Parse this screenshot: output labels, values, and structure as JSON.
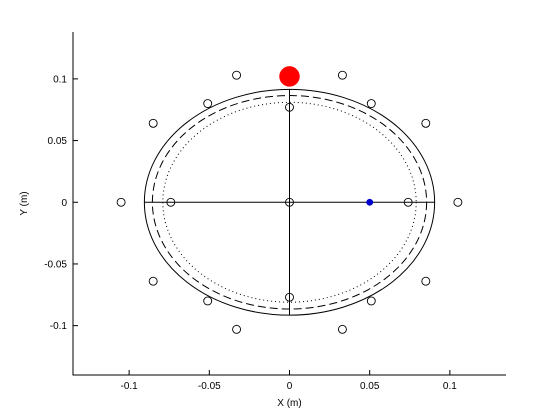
{
  "chart_data": {
    "type": "scatter",
    "title": "",
    "xlabel": "X (m)",
    "ylabel": "Y (m)",
    "xlim": [
      -0.135,
      0.135
    ],
    "ylim": [
      -0.14,
      0.138
    ],
    "grid": false,
    "legend": "none",
    "xticks": [
      {
        "value": -0.1,
        "label": "-0.1"
      },
      {
        "value": -0.05,
        "label": "-0.05"
      },
      {
        "value": 0,
        "label": "0"
      },
      {
        "value": 0.05,
        "label": "0.05"
      },
      {
        "value": 0.1,
        "label": "0.1"
      }
    ],
    "yticks": [
      {
        "value": 0.1,
        "label": "0.1"
      },
      {
        "value": 0.05,
        "label": "0.05"
      },
      {
        "value": 0,
        "label": "0"
      },
      {
        "value": -0.05,
        "label": "-0.05"
      },
      {
        "value": -0.1,
        "label": "-0.1"
      }
    ],
    "ellipses": [
      {
        "name": "outer-ellipse",
        "center": [
          0,
          0
        ],
        "rx": 0.0905,
        "ry": 0.0915,
        "style": "solid",
        "color": "#000000"
      },
      {
        "name": "middle-ellipse",
        "center": [
          0,
          0
        ],
        "rx": 0.0855,
        "ry": 0.0865,
        "style": "dashed",
        "color": "#000000"
      },
      {
        "name": "inner-ellipse",
        "center": [
          0,
          0
        ],
        "rx": 0.079,
        "ry": 0.081,
        "style": "dotted",
        "color": "#000000"
      }
    ],
    "axis_lines": [
      {
        "name": "horizontal-center-line",
        "from": [
          -0.0905,
          0
        ],
        "to": [
          0.0905,
          0
        ]
      },
      {
        "name": "vertical-center-line",
        "from": [
          0,
          -0.0915
        ],
        "to": [
          0,
          0.0915
        ]
      }
    ],
    "series": [
      {
        "name": "outer-ring-markers",
        "marker": "open-circle",
        "color": "#000000",
        "points": [
          [
            -0.033,
            0.103
          ],
          [
            0.033,
            0.103
          ],
          [
            -0.051,
            0.08
          ],
          [
            0.051,
            0.08
          ],
          [
            -0.085,
            0.064
          ],
          [
            0.085,
            0.064
          ],
          [
            -0.105,
            0.0
          ],
          [
            0.105,
            0.0
          ],
          [
            -0.085,
            -0.064
          ],
          [
            0.085,
            -0.064
          ],
          [
            -0.051,
            -0.08
          ],
          [
            0.051,
            -0.08
          ],
          [
            -0.033,
            -0.103
          ],
          [
            0.033,
            -0.103
          ]
        ]
      },
      {
        "name": "inner-markers",
        "marker": "open-circle",
        "color": "#000000",
        "points": [
          [
            0.0,
            0.077
          ],
          [
            0.0,
            -0.077
          ],
          [
            -0.074,
            0.0
          ],
          [
            0.074,
            0.0
          ],
          [
            0.0,
            0.0
          ]
        ]
      },
      {
        "name": "blue-point",
        "marker": "filled-circle-small",
        "color": "#0000cc",
        "points": [
          [
            0.05,
            0.0
          ]
        ]
      },
      {
        "name": "red-point",
        "marker": "filled-circle-large",
        "color": "#ff0000",
        "points": [
          [
            0.0,
            0.102
          ]
        ]
      }
    ]
  }
}
